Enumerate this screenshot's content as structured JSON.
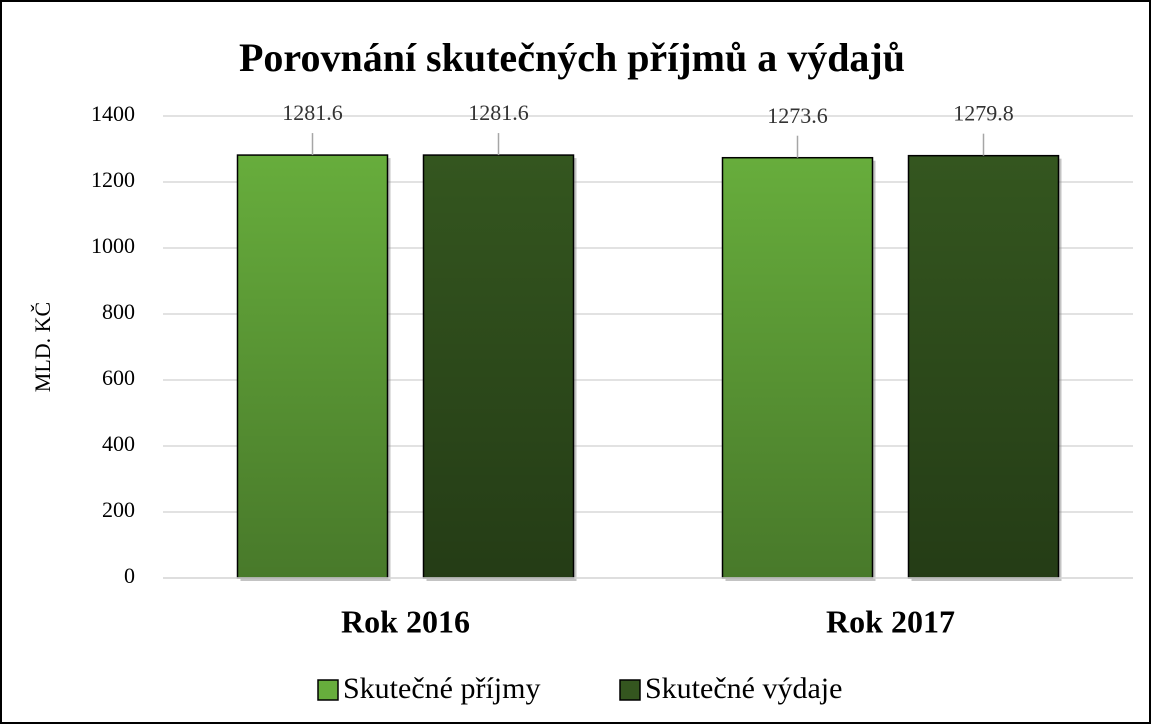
{
  "chart_data": {
    "type": "bar",
    "title": "Porovnání skutečných příjmů a výdajů",
    "y_label": "MLD. KČ",
    "categories": [
      "Rok 2016",
      "Rok 2017"
    ],
    "series": [
      {
        "name": "Skutečné příjmy",
        "color": "#67ad3c",
        "values": [
          1281.6,
          1273.6
        ]
      },
      {
        "name": "Skutečné výdaje",
        "color": "#34561f",
        "values": [
          1281.6,
          1279.8
        ]
      }
    ],
    "ylim": [
      0,
      1400
    ],
    "yticks": [
      0,
      200,
      400,
      600,
      800,
      1000,
      1200,
      1400
    ],
    "grid": true
  }
}
